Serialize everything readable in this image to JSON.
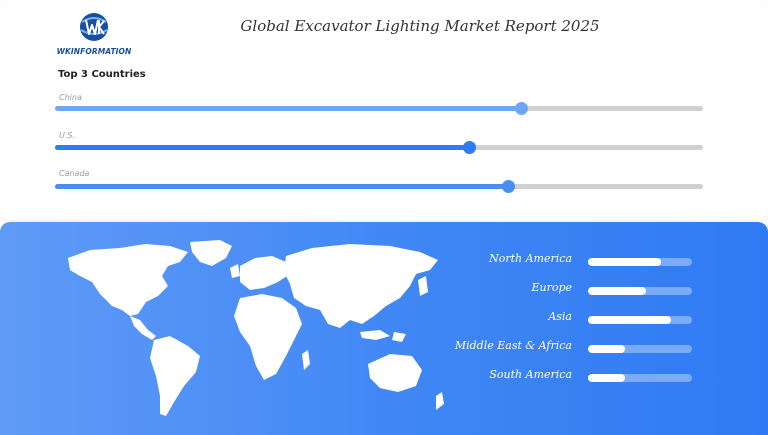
{
  "brand": {
    "name": "WKINFORMATION",
    "colors": {
      "dark_blue": "#1c4ea0",
      "accent": "#3f86f5"
    }
  },
  "title": "Global Excavator Lighting Market Report 2025",
  "section_title": "Top 3 Countries",
  "icons": {
    "logo": "globe-wk-logo-icon",
    "map": "world-map-icon"
  },
  "chart_data": [
    {
      "type": "bar",
      "orientation": "horizontal",
      "title": "Top 3 Countries",
      "categories": [
        "China",
        "U.S.",
        "Canada"
      ],
      "values": [
        72,
        64,
        70
      ],
      "value_scale": "percent of track",
      "colors": [
        "#6ea6f7",
        "#2f7bf3",
        "#4a8df5"
      ]
    },
    {
      "type": "bar",
      "orientation": "horizontal",
      "categories": [
        "North America",
        "Europe",
        "Asia",
        "Middle East & Africa",
        "South America"
      ],
      "values": [
        70,
        56,
        80,
        36,
        36
      ],
      "value_scale": "percent of track",
      "colors": [
        "#ffffff"
      ]
    }
  ]
}
